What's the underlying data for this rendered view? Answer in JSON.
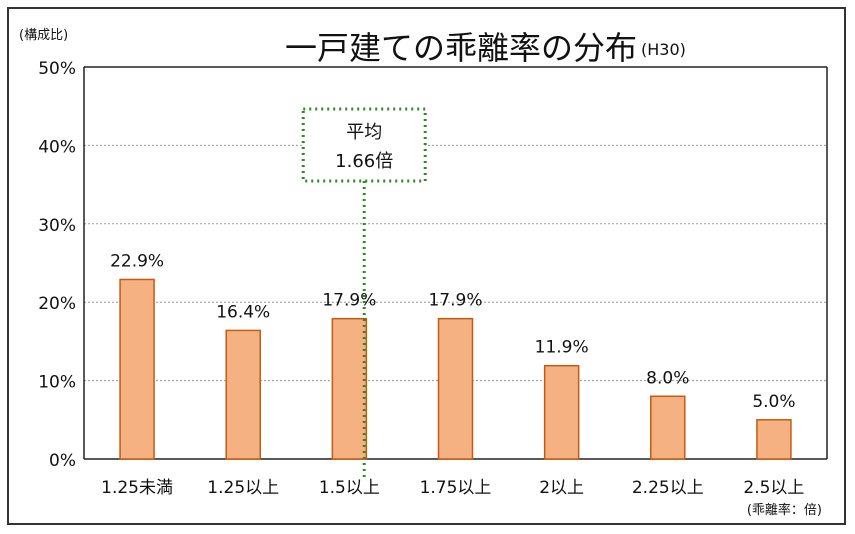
{
  "chart_data": {
    "type": "bar",
    "title": "一戸建ての乖離率の分布",
    "title_note": "(H30)",
    "y_unit_label": "(構成比)",
    "x_unit_label": "(乖離率：倍)",
    "categories": [
      "1.25未満",
      "1.25以上",
      "1.5以上",
      "1.75以上",
      "2以上",
      "2.25以上",
      "2.5以上"
    ],
    "values": [
      22.9,
      16.4,
      17.9,
      17.9,
      11.9,
      8.0,
      5.0
    ],
    "value_labels": [
      "22.9%",
      "16.4%",
      "17.9%",
      "17.9%",
      "11.9%",
      "8.0%",
      "5.0%"
    ],
    "ylim": [
      0,
      50
    ],
    "yticks": [
      0,
      10,
      20,
      30,
      40,
      50
    ],
    "ytick_labels": [
      "0%",
      "10%",
      "20%",
      "30%",
      "40%",
      "50%"
    ],
    "grid": true,
    "bar_fill": "#f6b183",
    "bar_stroke": "#c55a11",
    "grid_color": "#999999",
    "average": {
      "label": "平均",
      "value_label": "1.66倍",
      "value": 1.66,
      "line_color": "#2e8b22"
    }
  }
}
